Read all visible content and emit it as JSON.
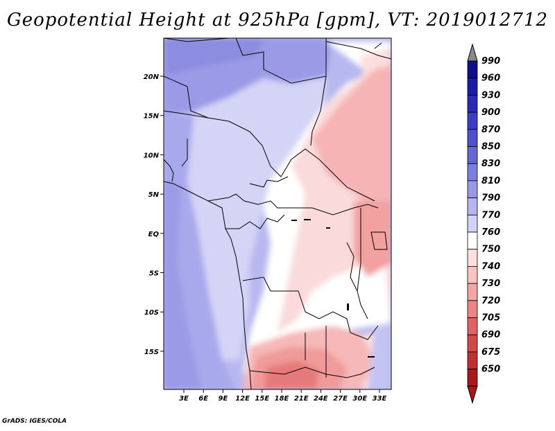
{
  "title": "Geopotential Height at 925hPa [gpm], VT: 2019012712",
  "credit": "GrADS: IGES/COLA",
  "map": {
    "lon_labels": [
      "3E",
      "6E",
      "9E",
      "12E",
      "15E",
      "18E",
      "21E",
      "24E",
      "27E",
      "30E",
      "33E"
    ],
    "lat_labels": [
      "20N",
      "15N",
      "10N",
      "5N",
      "EQ",
      "5S",
      "10S",
      "15S"
    ]
  },
  "colorbar": {
    "levels": [
      "990",
      "960",
      "930",
      "900",
      "870",
      "850",
      "830",
      "810",
      "790",
      "770",
      "760",
      "750",
      "740",
      "730",
      "720",
      "705",
      "690",
      "675",
      "650"
    ],
    "colors": [
      "#0f0f8c",
      "#1b1ba6",
      "#2a2ab8",
      "#3c3cc4",
      "#5050cc",
      "#6666d4",
      "#7e7edc",
      "#9898e4",
      "#b4b4ee",
      "#d2d2f6",
      "#ffffff",
      "#fde0e0",
      "#fac3c3",
      "#f4a4a4",
      "#ec8484",
      "#e06464",
      "#d24848",
      "#c03030",
      "#a81818"
    ],
    "top_arrow_color": "#888888",
    "bottom_arrow_color": "#a81818"
  }
}
